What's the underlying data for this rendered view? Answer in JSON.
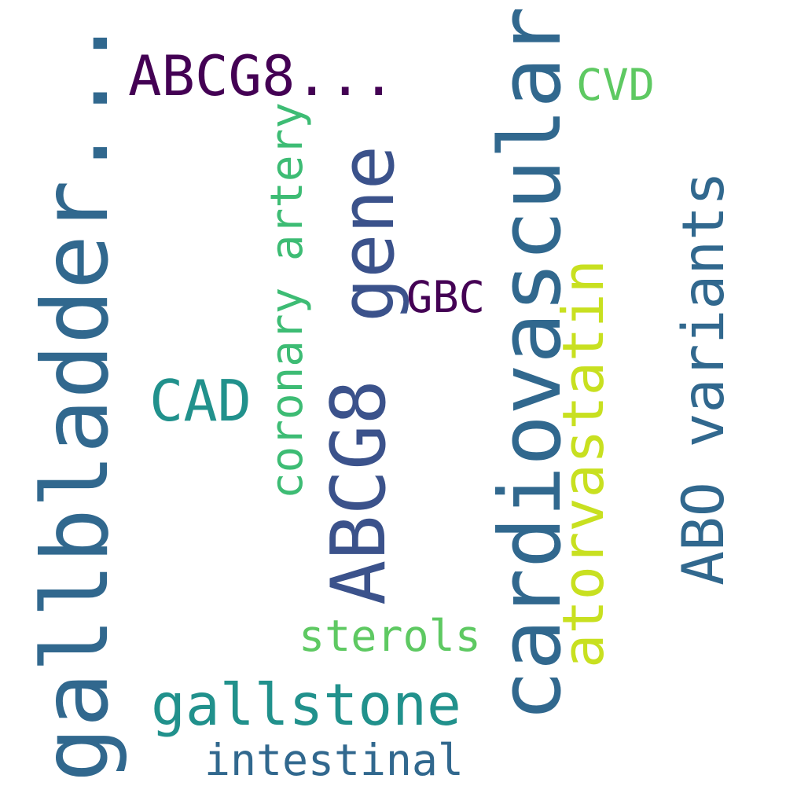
{
  "colors": {
    "background": "#ffffff",
    "dark_purple": "#440154",
    "indigo": "#3b528b",
    "steel_blue": "#31688e",
    "teal": "#21918c",
    "green": "#3dbc74",
    "light_green": "#5ec962",
    "yellow_green": "#c8e020"
  },
  "words": [
    {
      "id": "gallbladder",
      "text": "gallbladder...",
      "color": "#31688e"
    },
    {
      "id": "cardiovascular",
      "text": "cardiovascular",
      "color": "#31688e"
    },
    {
      "id": "abcg8",
      "text": "ABCG8",
      "color": "#3b528b"
    },
    {
      "id": "gene",
      "text": "gene",
      "color": "#3b528b"
    },
    {
      "id": "abcg8-ellipsis",
      "text": "ABCG8...",
      "color": "#440154"
    },
    {
      "id": "abo-variants",
      "text": "ABO variants",
      "color": "#31688e"
    },
    {
      "id": "atorvastatin",
      "text": "atorvastatin",
      "color": "#c8e020"
    },
    {
      "id": "gallstone",
      "text": "gallstone",
      "color": "#21918c"
    },
    {
      "id": "cad",
      "text": "CAD",
      "color": "#21918c"
    },
    {
      "id": "coronary-artery",
      "text": "coronary artery",
      "color": "#3dbc74"
    },
    {
      "id": "sterols",
      "text": "sterols",
      "color": "#5ec962"
    },
    {
      "id": "intestinal",
      "text": "intestinal",
      "color": "#31688e"
    },
    {
      "id": "cvd",
      "text": "CVD",
      "color": "#5ec962"
    },
    {
      "id": "gbc",
      "text": "GBC",
      "color": "#440154"
    }
  ]
}
